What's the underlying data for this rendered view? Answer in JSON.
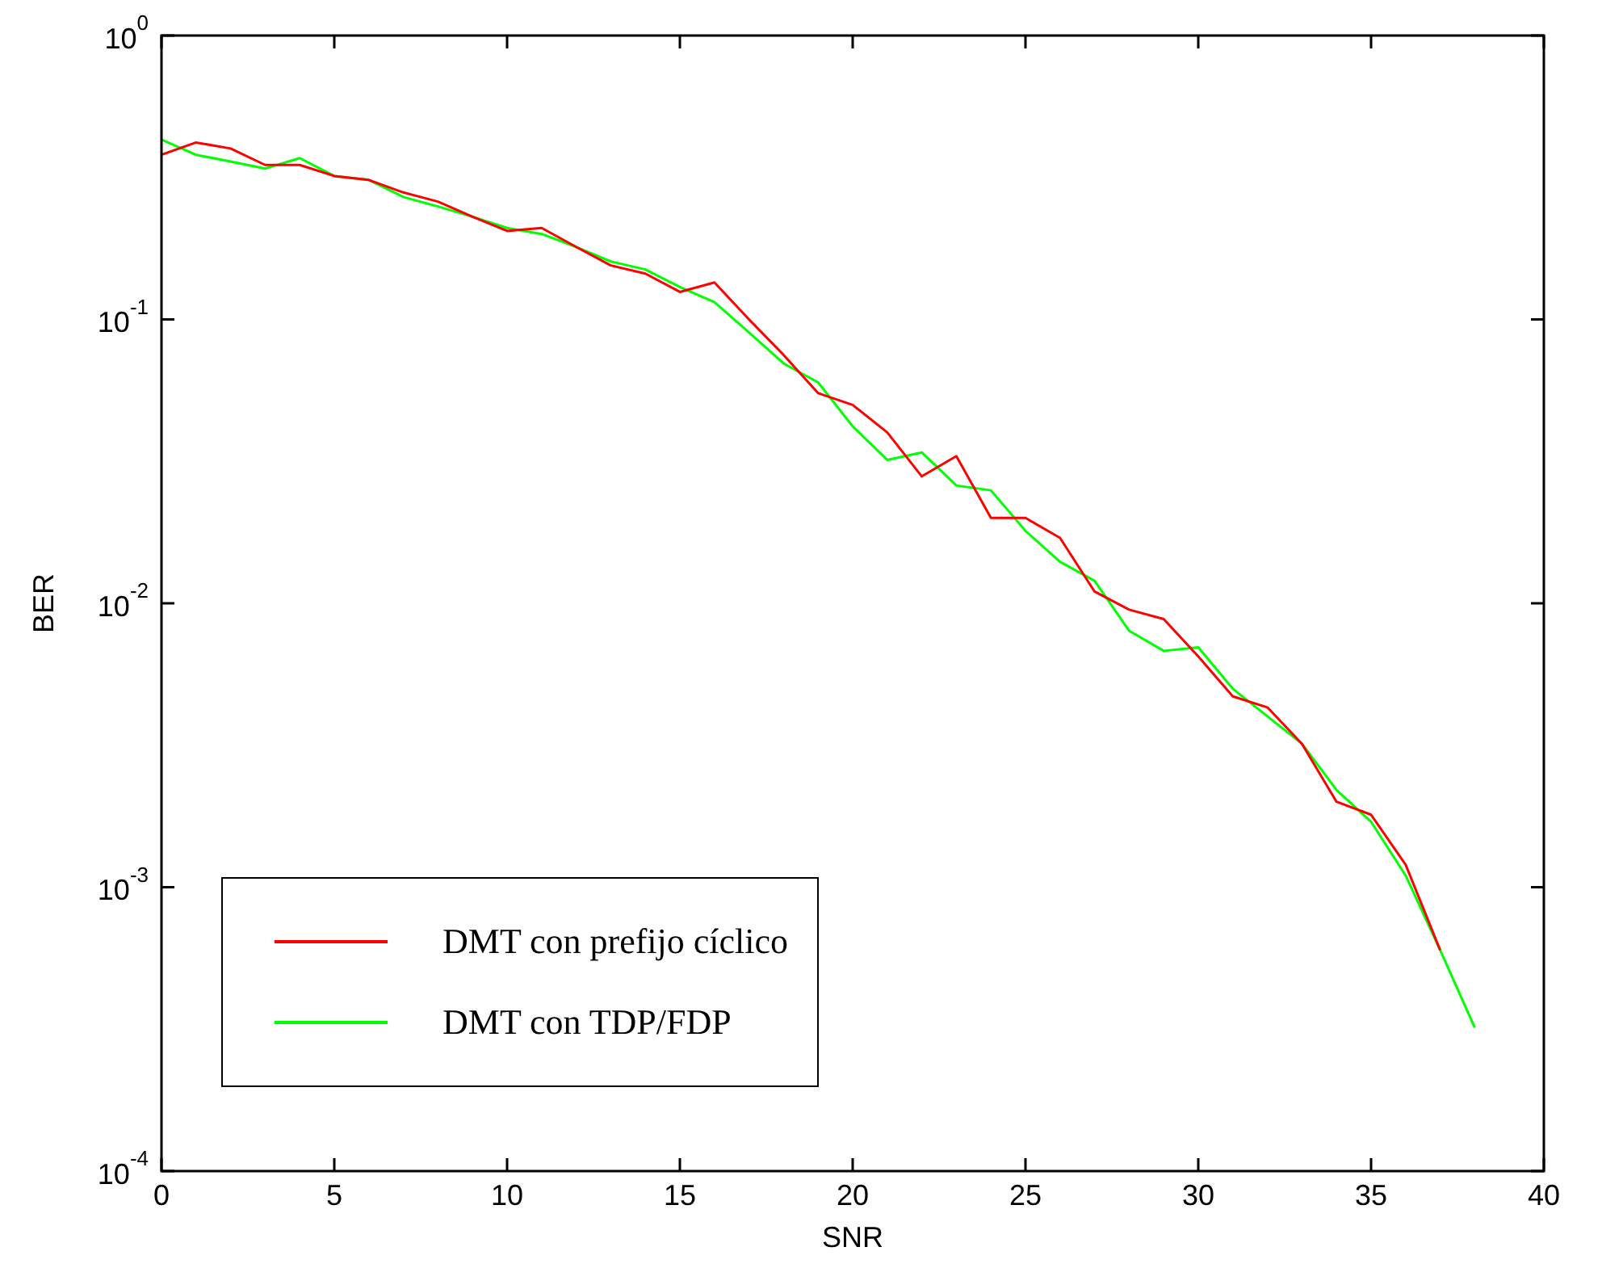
{
  "chart_data": {
    "type": "line",
    "xlabel": "SNR",
    "ylabel": "BER",
    "log": "y",
    "grid": false,
    "legend": "bottom left",
    "marker": "none",
    "line_style": "solid",
    "xlim": [
      0,
      40
    ],
    "xticks": [
      0,
      5,
      10,
      15,
      20,
      25,
      30,
      35,
      40
    ],
    "ylim": [
      0.0001,
      1
    ],
    "yticks": [
      {
        "value": 0.0001,
        "label": "10$^{-4}$"
      },
      {
        "value": 0.001,
        "label": "10$^{-3}$"
      },
      {
        "value": 0.01,
        "label": "10$^{-2}$"
      },
      {
        "value": 0.1,
        "label": "10$^{-1}$"
      },
      {
        "value": 1,
        "label": "10$^{0}$"
      }
    ],
    "series": [
      {
        "name": "DMT con prefijo cíclico",
        "color": "#ff0000",
        "x": [
          0,
          1,
          2,
          3,
          4,
          5,
          6,
          7,
          8,
          9,
          10,
          11,
          12,
          13,
          14,
          15,
          16,
          17,
          18,
          19,
          20,
          21,
          22,
          23,
          24,
          25,
          26,
          27,
          28,
          29,
          30,
          31,
          32,
          33,
          34,
          35,
          36,
          37
        ],
        "values": [
          0.38,
          0.42,
          0.4,
          0.35,
          0.35,
          0.32,
          0.31,
          0.28,
          0.26,
          0.23,
          0.205,
          0.21,
          0.18,
          0.155,
          0.145,
          0.125,
          0.135,
          0.1,
          0.075,
          0.055,
          0.05,
          0.04,
          0.028,
          0.033,
          0.02,
          0.02,
          0.017,
          0.011,
          0.0095,
          0.0088,
          0.0065,
          0.0047,
          0.0043,
          0.0032,
          0.002,
          0.0018,
          0.0012,
          0.0006
        ]
      },
      {
        "name": "DMT con TDP/FDP",
        "color": "#00ff00",
        "x": [
          0,
          1,
          2,
          3,
          4,
          5,
          6,
          7,
          8,
          9,
          10,
          11,
          12,
          13,
          14,
          15,
          16,
          17,
          18,
          19,
          20,
          21,
          22,
          23,
          24,
          25,
          26,
          27,
          28,
          29,
          30,
          31,
          32,
          33,
          34,
          35,
          36,
          37,
          38
        ],
        "values": [
          0.43,
          0.38,
          0.36,
          0.34,
          0.37,
          0.32,
          0.31,
          0.27,
          0.25,
          0.23,
          0.21,
          0.2,
          0.18,
          0.16,
          0.15,
          0.13,
          0.115,
          0.09,
          0.07,
          0.06,
          0.042,
          0.032,
          0.034,
          0.026,
          0.025,
          0.018,
          0.014,
          0.012,
          0.008,
          0.0068,
          0.007,
          0.005,
          0.004,
          0.0032,
          0.0022,
          0.0017,
          0.0011,
          0.0006,
          0.00032
        ]
      }
    ]
  }
}
